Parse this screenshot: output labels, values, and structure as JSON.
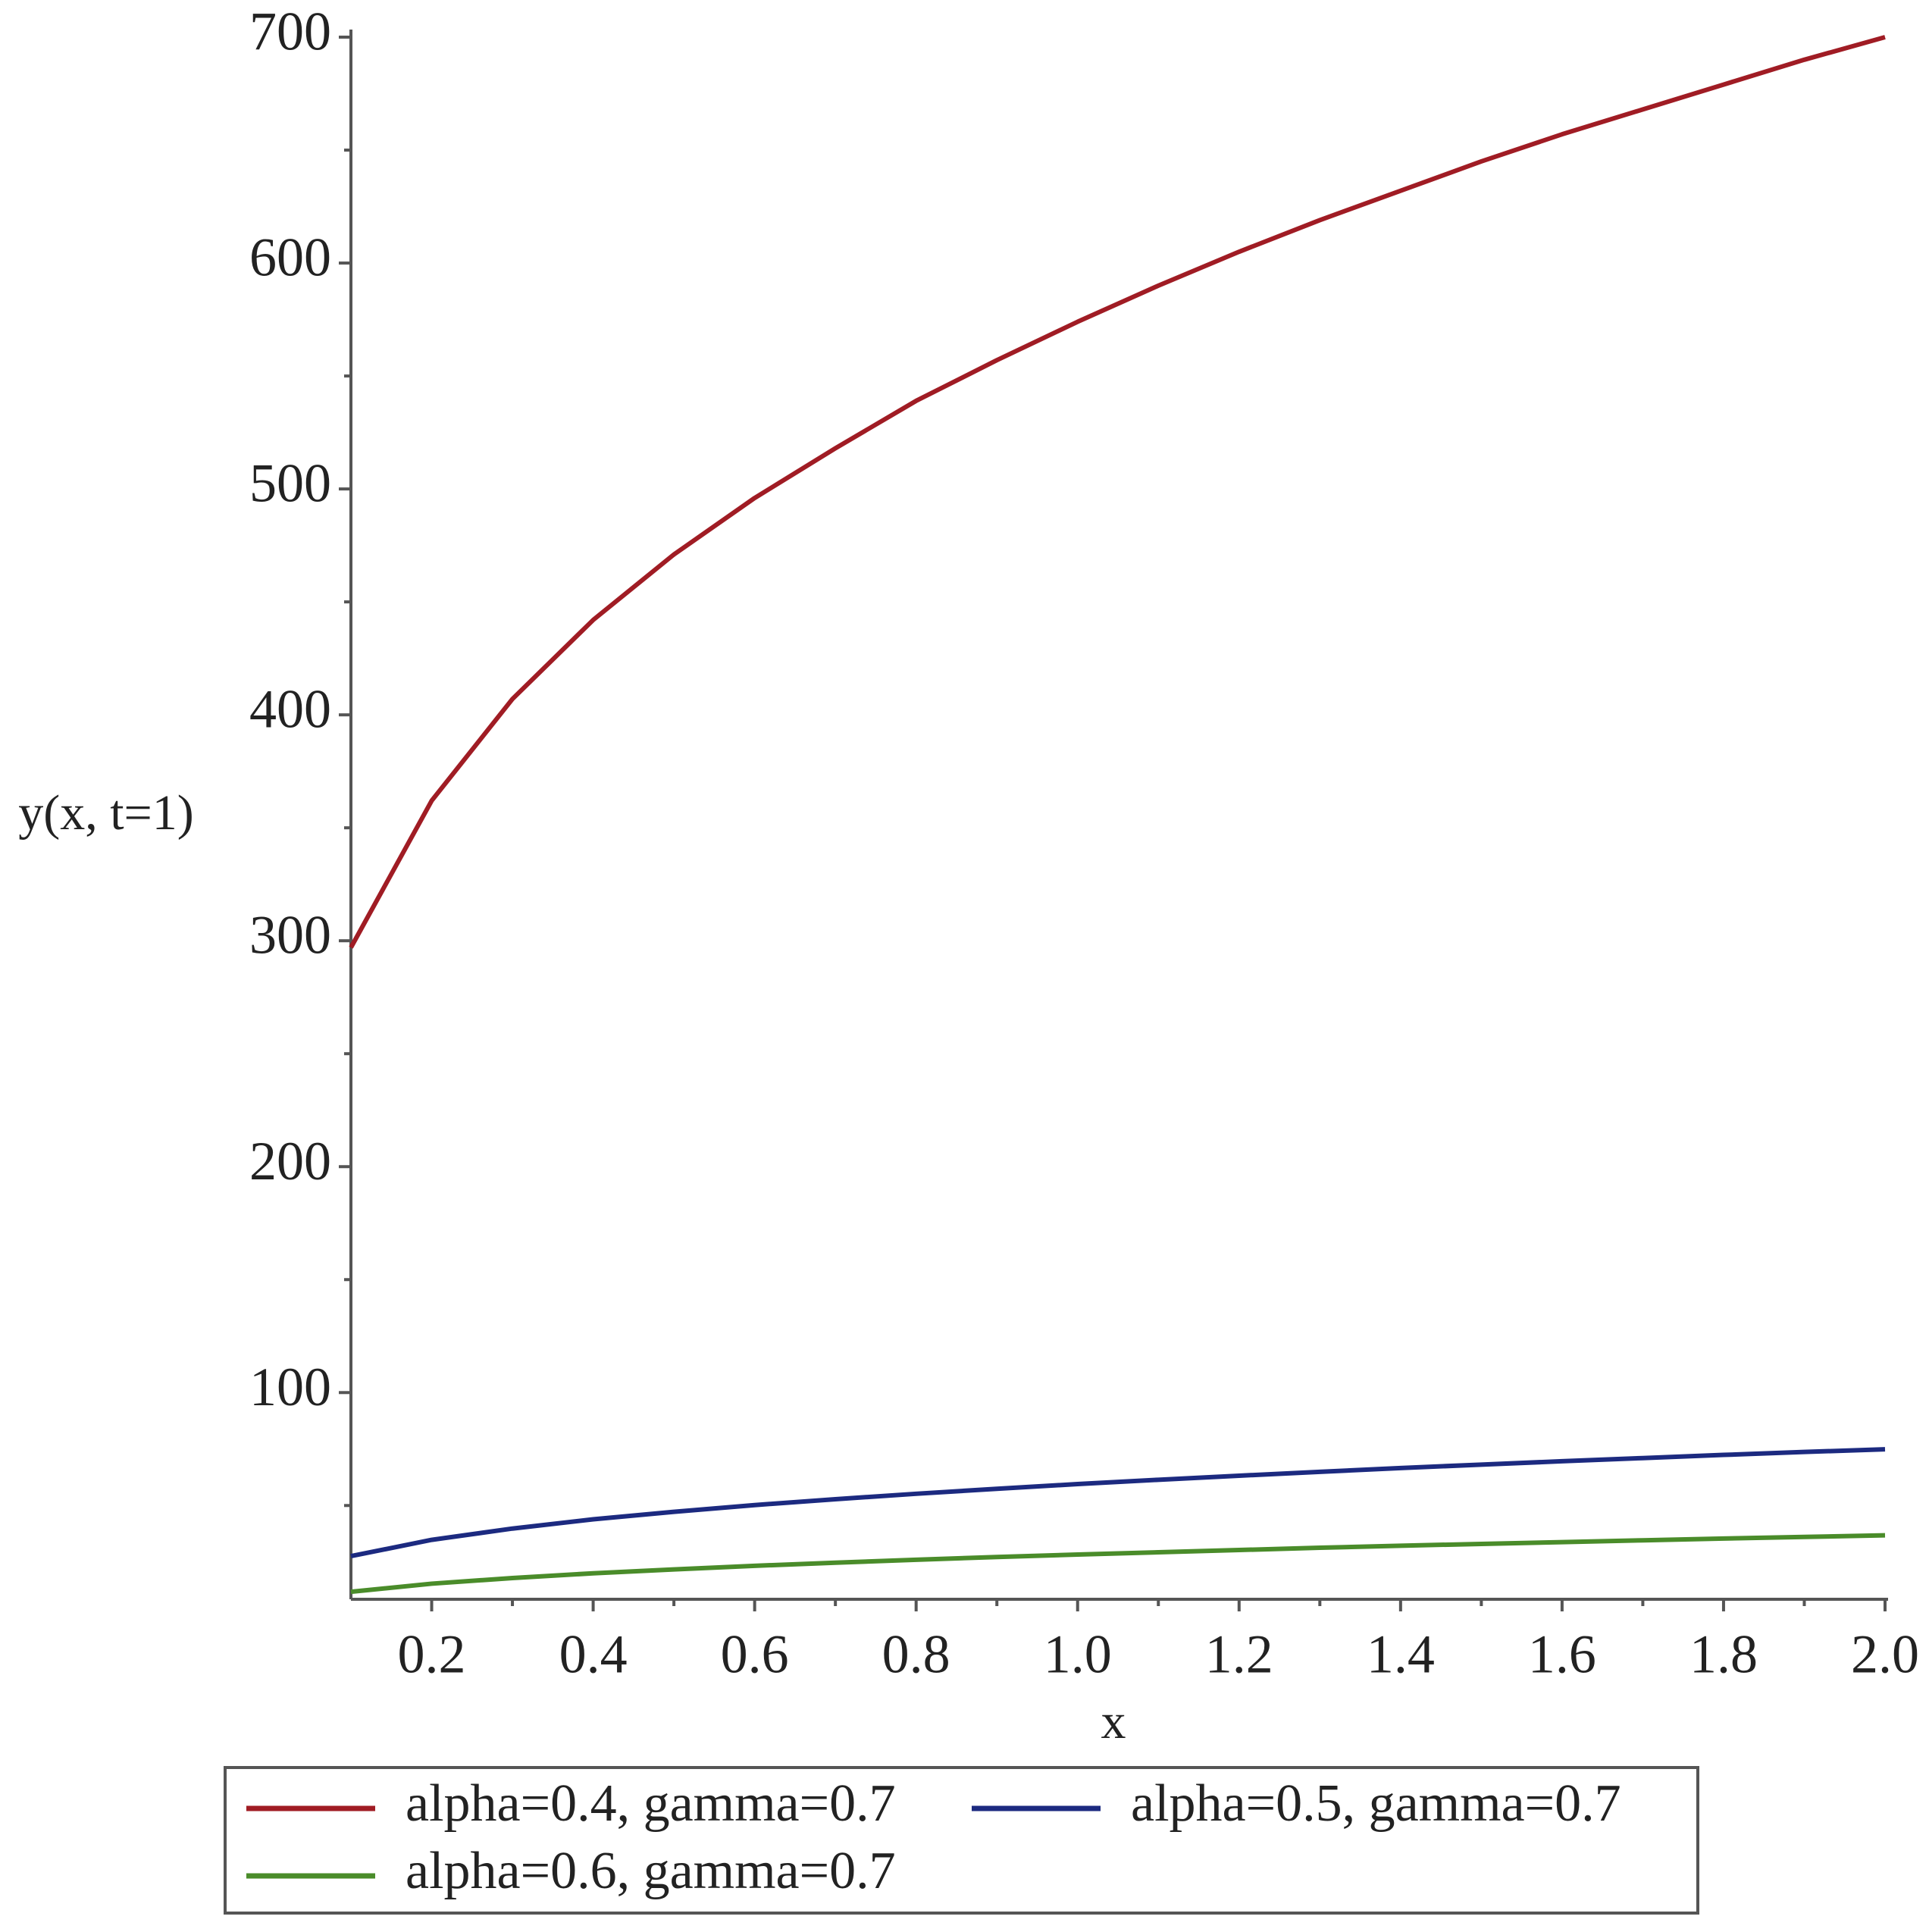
{
  "chart_data": {
    "type": "line",
    "x_label": "x",
    "y_label": "y(x, t=1)",
    "x": [
      0.1,
      0.2,
      0.3,
      0.4,
      0.5,
      0.6,
      0.7,
      0.8,
      0.9,
      1.0,
      1.1,
      1.2,
      1.3,
      1.4,
      1.5,
      1.6,
      1.7,
      1.8,
      1.9,
      2.0
    ],
    "series": [
      {
        "name": "alpha=0.4, gamma=0.7",
        "color": "#a01c24",
        "values": [
          297,
          362,
          407,
          442,
          471,
          496,
          518,
          539,
          557,
          574,
          590,
          605,
          619,
          632,
          645,
          657,
          668,
          679,
          690,
          700
        ]
      },
      {
        "name": "alpha=0.5, gamma=0.7",
        "color": "#1c2a80",
        "values": [
          27.6,
          34.8,
          39.8,
          43.9,
          47.2,
          50.2,
          52.8,
          55.2,
          57.4,
          59.5,
          61.4,
          63.2,
          64.9,
          66.6,
          68.1,
          69.6,
          71.0,
          72.4,
          73.7,
          74.9
        ]
      },
      {
        "name": "alpha=0.6, gamma=0.7",
        "color": "#4a8c2a",
        "values": [
          11.8,
          15.4,
          17.9,
          20.0,
          21.7,
          23.3,
          24.7,
          26.0,
          27.2,
          28.3,
          29.3,
          30.3,
          31.3,
          32.2,
          33.0,
          33.8,
          34.6,
          35.4,
          36.1,
          36.8
        ]
      }
    ],
    "xlim": [
      0.1,
      2.0
    ],
    "ylim": [
      8.5,
      700
    ],
    "xticks": [
      0.2,
      0.4,
      0.6,
      0.8,
      {
        "value": 1.0,
        "label": "1.0"
      },
      1.2,
      1.4,
      1.6,
      1.8,
      {
        "value": 2.0,
        "label": "2.0"
      }
    ],
    "yticks": [
      100,
      200,
      300,
      400,
      500,
      600,
      700
    ],
    "grid": false,
    "legend": "bottom"
  }
}
